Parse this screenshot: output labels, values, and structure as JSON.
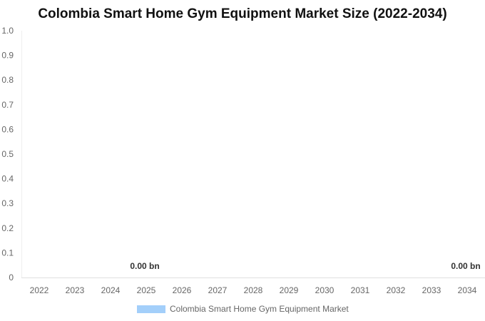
{
  "chart_data": {
    "type": "bar",
    "title": "Colombia Smart Home Gym Equipment Market Size (2022-2034)",
    "categories": [
      "2022",
      "2023",
      "2024",
      "2025",
      "2026",
      "2027",
      "2028",
      "2029",
      "2030",
      "2031",
      "2032",
      "2033",
      "2034"
    ],
    "series": [
      {
        "name": "Colombia Smart Home Gym Equipment Market",
        "values": [
          0,
          0,
          0,
          0,
          0,
          0,
          0,
          0,
          0,
          0,
          0,
          0,
          0
        ],
        "color": "#a3cffa"
      }
    ],
    "data_labels": [
      {
        "category": "2025",
        "text": "0.00 bn"
      },
      {
        "category": "2034",
        "text": "0.00 bn"
      }
    ],
    "yticks": [
      "0",
      "0.1",
      "0.2",
      "0.3",
      "0.4",
      "0.5",
      "0.6",
      "0.7",
      "0.8",
      "0.9",
      "1.0"
    ],
    "ylim": [
      0,
      1
    ],
    "xlabel": "",
    "ylabel": "",
    "grid": false,
    "legend": "bottom"
  }
}
